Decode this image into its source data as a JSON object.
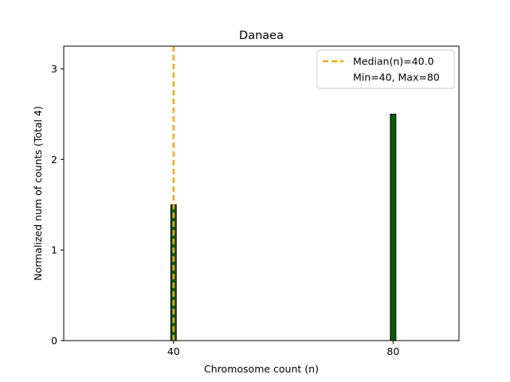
{
  "chart_data": {
    "type": "bar",
    "title": "Danaea",
    "xlabel": "Chromosome count (n)",
    "ylabel": "Normalized num of counts     (Total 4)",
    "xlim": [
      20,
      92
    ],
    "ylim": [
      0,
      3.25
    ],
    "xticks": [
      40,
      80
    ],
    "yticks": [
      0,
      1,
      2,
      3
    ],
    "bar_width": 1,
    "bars": [
      {
        "x": 40,
        "value": 1.5
      },
      {
        "x": 80,
        "value": 2.5
      }
    ],
    "median": 40.0,
    "legend": {
      "placement": "top-right",
      "entries": [
        "Median(n)=40.0",
        "Min=40, Max=80"
      ]
    },
    "grid": false
  },
  "colors": {
    "bar_fill": "#0b5a0b",
    "bar_edge": "#000000",
    "median_line": "#f5a90b",
    "axes": "#000000"
  }
}
